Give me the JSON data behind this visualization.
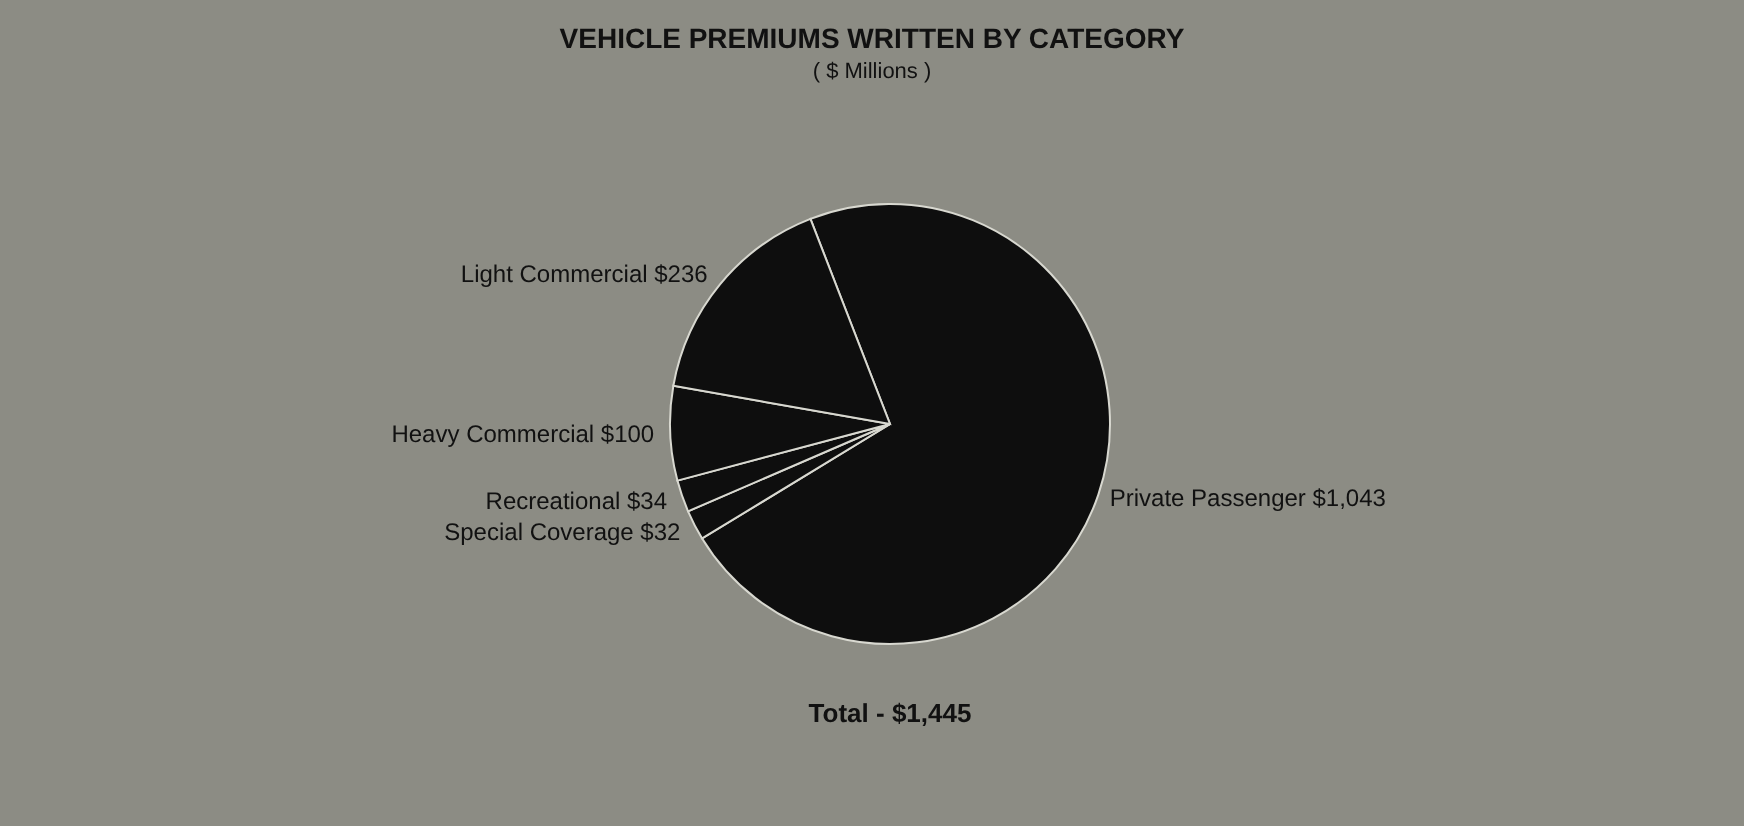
{
  "chart_data": {
    "type": "pie",
    "title": "VEHICLE PREMIUMS WRITTEN BY CATEGORY",
    "subtitle": "( $ Millions )",
    "categories": [
      "Private Passenger",
      "Special Coverage",
      "Recreational",
      "Heavy Commercial",
      "Light Commercial"
    ],
    "values": [
      1043,
      32,
      34,
      100,
      236
    ],
    "value_labels": [
      "$1,043",
      "$32",
      "$34",
      "$100",
      "$236"
    ],
    "colors": [
      "#0e0e0e",
      "#0e0e0e",
      "#0e0e0e",
      "#0e0e0e",
      "#0e0e0e"
    ],
    "annotations": [
      "Total - $1,445"
    ],
    "legend": false
  }
}
